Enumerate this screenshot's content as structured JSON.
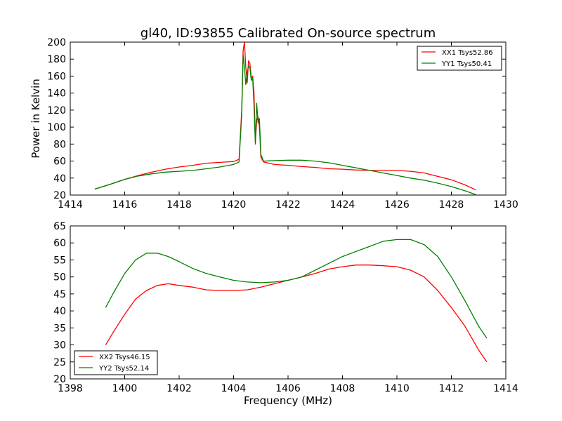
{
  "figure_title": "gl40, ID:93855 Calibrated On-source spectrum",
  "chart_data": [
    {
      "type": "line",
      "title": "gl40, ID:93855 Calibrated On-source spectrum",
      "xlabel": "",
      "ylabel": "Power in Kelvin",
      "xlim": [
        1414,
        1430
      ],
      "ylim": [
        20,
        200
      ],
      "xticks": [
        1414,
        1416,
        1418,
        1420,
        1422,
        1424,
        1426,
        1428,
        1430
      ],
      "yticks": [
        20,
        40,
        60,
        80,
        100,
        120,
        140,
        160,
        180,
        200
      ],
      "grid": false,
      "legend_position": "upper right",
      "series": [
        {
          "name": "XX1 Tsys52.86",
          "color": "#ff0000",
          "points": [
            [
              1414.9,
              27
            ],
            [
              1415.5,
              33
            ],
            [
              1416.0,
              38.5
            ],
            [
              1416.5,
              43
            ],
            [
              1417.0,
              47
            ],
            [
              1417.5,
              50.5
            ],
            [
              1418.0,
              53
            ],
            [
              1418.5,
              55
            ],
            [
              1419.0,
              57.5
            ],
            [
              1419.5,
              58.5
            ],
            [
              1420.0,
              59.5
            ],
            [
              1420.2,
              62
            ],
            [
              1420.3,
              120
            ],
            [
              1420.35,
              190
            ],
            [
              1420.4,
              200
            ],
            [
              1420.45,
              170
            ],
            [
              1420.5,
              152
            ],
            [
              1420.55,
              178
            ],
            [
              1420.6,
              175
            ],
            [
              1420.65,
              158
            ],
            [
              1420.7,
              160
            ],
            [
              1420.75,
              140
            ],
            [
              1420.8,
              82
            ],
            [
              1420.85,
              108
            ],
            [
              1420.9,
              112
            ],
            [
              1420.95,
              100
            ],
            [
              1421.0,
              65
            ],
            [
              1421.1,
              59
            ],
            [
              1421.5,
              56
            ],
            [
              1422.0,
              55
            ],
            [
              1422.5,
              53.5
            ],
            [
              1423.0,
              52.5
            ],
            [
              1423.5,
              51
            ],
            [
              1424.0,
              50.5
            ],
            [
              1424.5,
              49.5
            ],
            [
              1425.0,
              49
            ],
            [
              1425.5,
              49
            ],
            [
              1426.0,
              49
            ],
            [
              1426.5,
              48
            ],
            [
              1427.0,
              46
            ],
            [
              1427.5,
              42
            ],
            [
              1428.0,
              38
            ],
            [
              1428.5,
              32
            ],
            [
              1428.9,
              26
            ]
          ]
        },
        {
          "name": "YY1 Tsys50.41",
          "color": "#008000",
          "points": [
            [
              1414.9,
              27
            ],
            [
              1415.5,
              33
            ],
            [
              1416.0,
              38.5
            ],
            [
              1416.5,
              42.5
            ],
            [
              1417.0,
              45
            ],
            [
              1417.5,
              47
            ],
            [
              1418.0,
              48
            ],
            [
              1418.5,
              49
            ],
            [
              1419.0,
              51
            ],
            [
              1419.5,
              53
            ],
            [
              1420.0,
              56
            ],
            [
              1420.2,
              59
            ],
            [
              1420.3,
              115
            ],
            [
              1420.35,
              185
            ],
            [
              1420.4,
              170
            ],
            [
              1420.45,
              150
            ],
            [
              1420.5,
              165
            ],
            [
              1420.55,
              172
            ],
            [
              1420.6,
              170
            ],
            [
              1420.65,
              155
            ],
            [
              1420.7,
              158
            ],
            [
              1420.75,
              125
            ],
            [
              1420.8,
              80
            ],
            [
              1420.85,
              128
            ],
            [
              1420.9,
              105
            ],
            [
              1420.95,
              110
            ],
            [
              1421.0,
              68
            ],
            [
              1421.1,
              60
            ],
            [
              1421.5,
              60.5
            ],
            [
              1422.0,
              61
            ],
            [
              1422.5,
              61
            ],
            [
              1423.0,
              60
            ],
            [
              1423.5,
              58
            ],
            [
              1424.0,
              55
            ],
            [
              1424.5,
              52
            ],
            [
              1425.0,
              49
            ],
            [
              1425.5,
              46
            ],
            [
              1426.0,
              43
            ],
            [
              1426.5,
              40
            ],
            [
              1427.0,
              37.5
            ],
            [
              1427.5,
              34
            ],
            [
              1428.0,
              30
            ],
            [
              1428.5,
              25
            ],
            [
              1428.9,
              20.5
            ]
          ]
        }
      ]
    },
    {
      "type": "line",
      "title": "",
      "xlabel": "Frequency (MHz)",
      "ylabel": "",
      "xlim": [
        1398,
        1414
      ],
      "ylim": [
        20,
        65
      ],
      "xticks": [
        1398,
        1400,
        1402,
        1404,
        1406,
        1408,
        1410,
        1412,
        1414
      ],
      "yticks": [
        20,
        25,
        30,
        35,
        40,
        45,
        50,
        55,
        60,
        65
      ],
      "grid": false,
      "legend_position": "lower left",
      "series": [
        {
          "name": "XX2 Tsys46.15",
          "color": "#ff0000",
          "points": [
            [
              1399.3,
              30
            ],
            [
              1399.6,
              34
            ],
            [
              1400.0,
              39
            ],
            [
              1400.4,
              43.5
            ],
            [
              1400.8,
              46
            ],
            [
              1401.2,
              47.5
            ],
            [
              1401.6,
              48
            ],
            [
              1402.0,
              47.5
            ],
            [
              1402.5,
              47
            ],
            [
              1403.0,
              46.2
            ],
            [
              1403.5,
              46
            ],
            [
              1404.0,
              46
            ],
            [
              1404.5,
              46.2
            ],
            [
              1405.0,
              47
            ],
            [
              1405.5,
              48
            ],
            [
              1406.0,
              49
            ],
            [
              1406.5,
              50
            ],
            [
              1407.0,
              51
            ],
            [
              1407.5,
              52.3
            ],
            [
              1408.0,
              53
            ],
            [
              1408.5,
              53.5
            ],
            [
              1409.0,
              53.5
            ],
            [
              1409.5,
              53.3
            ],
            [
              1410.0,
              53
            ],
            [
              1410.5,
              52
            ],
            [
              1411.0,
              50
            ],
            [
              1411.5,
              46
            ],
            [
              1412.0,
              41
            ],
            [
              1412.5,
              35.5
            ],
            [
              1413.0,
              28.5
            ],
            [
              1413.3,
              25
            ]
          ]
        },
        {
          "name": "YY2 Tsys52.14",
          "color": "#008000",
          "points": [
            [
              1399.3,
              41
            ],
            [
              1399.6,
              45.5
            ],
            [
              1400.0,
              51
            ],
            [
              1400.4,
              55
            ],
            [
              1400.8,
              57
            ],
            [
              1401.2,
              57
            ],
            [
              1401.6,
              56
            ],
            [
              1402.0,
              54.5
            ],
            [
              1402.5,
              52.5
            ],
            [
              1403.0,
              51
            ],
            [
              1403.5,
              50
            ],
            [
              1404.0,
              49
            ],
            [
              1404.5,
              48.5
            ],
            [
              1405.0,
              48.3
            ],
            [
              1405.5,
              48.5
            ],
            [
              1406.0,
              49
            ],
            [
              1406.5,
              50
            ],
            [
              1407.0,
              52
            ],
            [
              1407.5,
              54
            ],
            [
              1408.0,
              56
            ],
            [
              1408.5,
              57.5
            ],
            [
              1409.0,
              59
            ],
            [
              1409.5,
              60.5
            ],
            [
              1410.0,
              61
            ],
            [
              1410.5,
              61
            ],
            [
              1411.0,
              59.5
            ],
            [
              1411.5,
              56
            ],
            [
              1412.0,
              50
            ],
            [
              1412.5,
              43
            ],
            [
              1413.0,
              35.5
            ],
            [
              1413.3,
              32
            ]
          ]
        }
      ]
    }
  ]
}
